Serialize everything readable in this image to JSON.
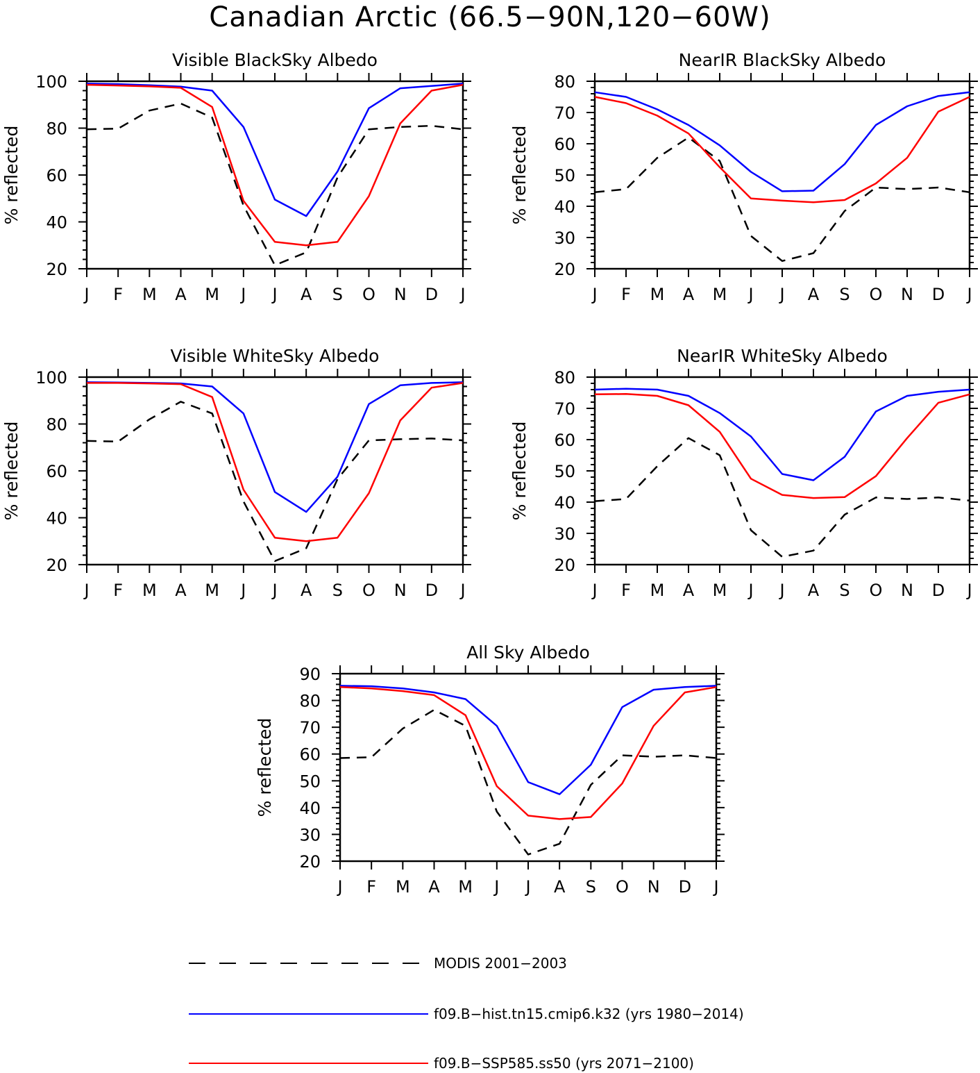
{
  "title": "Canadian Arctic (66.5−90N,120−60W)",
  "colors": {
    "modis": "#000000",
    "hist": "#0000ff",
    "ssp": "#ff0000"
  },
  "legend": [
    {
      "key": "modis",
      "label": "MODIS 2001−2003",
      "style": "dashed"
    },
    {
      "key": "hist",
      "label": "f09.B−hist.tn15.cmip6.k32 (yrs 1980−2014)",
      "style": "solid"
    },
    {
      "key": "ssp",
      "label": "f09.B−SSP585.ss50 (yrs 2071−2100)",
      "style": "solid"
    }
  ],
  "chart_data": [
    {
      "type": "line",
      "title": "Visible BlackSky Albedo",
      "xlabel": "",
      "ylabel": "% reflected",
      "categories": [
        "J",
        "F",
        "M",
        "A",
        "M",
        "J",
        "J",
        "A",
        "S",
        "O",
        "N",
        "D",
        "J"
      ],
      "ylim": [
        20,
        100
      ],
      "yticks": [
        20,
        40,
        60,
        80,
        100
      ],
      "series": [
        {
          "name": "MODIS 2001−2003",
          "key": "modis",
          "values": [
            79.5,
            79.8,
            87.5,
            90.5,
            84.5,
            47,
            21.5,
            27,
            59,
            79.5,
            80.5,
            81,
            79.5
          ]
        },
        {
          "name": "f09.B−hist.tn15.cmip6.k32 (yrs 1980−2014)",
          "key": "hist",
          "values": [
            99,
            98.8,
            98.3,
            97.7,
            96,
            80.5,
            49.5,
            42.5,
            61.5,
            88.5,
            97,
            98,
            99
          ]
        },
        {
          "name": "f09.B−SSP585.ss50 (yrs 2071−2100)",
          "key": "ssp",
          "values": [
            98.5,
            98.2,
            97.8,
            97.2,
            89,
            49,
            31.5,
            30,
            31.5,
            51,
            82,
            96,
            98.5
          ]
        }
      ]
    },
    {
      "type": "line",
      "title": "NearIR BlackSky Albedo",
      "xlabel": "",
      "ylabel": "% reflected",
      "categories": [
        "J",
        "F",
        "M",
        "A",
        "M",
        "J",
        "J",
        "A",
        "S",
        "O",
        "N",
        "D",
        "J"
      ],
      "ylim": [
        20,
        80
      ],
      "yticks": [
        20,
        30,
        40,
        50,
        60,
        70,
        80
      ],
      "series": [
        {
          "name": "MODIS 2001−2003",
          "key": "modis",
          "values": [
            44.5,
            45.5,
            55.5,
            62,
            54.5,
            30.5,
            22.5,
            25,
            38.5,
            46,
            45.5,
            46,
            44.5
          ]
        },
        {
          "name": "f09.B−hist.tn15.cmip6.k32 (yrs 1980−2014)",
          "key": "hist",
          "values": [
            76.5,
            75,
            71,
            66,
            59.5,
            51,
            44.8,
            45,
            53.5,
            66,
            72,
            75.3,
            76.5
          ]
        },
        {
          "name": "f09.B−SSP585.ss50 (yrs 2071−2100)",
          "key": "ssp",
          "values": [
            75,
            73,
            69,
            63.3,
            52.5,
            42.5,
            41.8,
            41.3,
            42,
            47.3,
            55.5,
            70.3,
            75
          ]
        }
      ]
    },
    {
      "type": "line",
      "title": "Visible WhiteSky Albedo",
      "xlabel": "",
      "ylabel": "% reflected",
      "categories": [
        "J",
        "F",
        "M",
        "A",
        "M",
        "J",
        "J",
        "A",
        "S",
        "O",
        "N",
        "D",
        "J"
      ],
      "ylim": [
        20,
        100
      ],
      "yticks": [
        20,
        40,
        60,
        80,
        100
      ],
      "series": [
        {
          "name": "MODIS 2001−2003",
          "key": "modis",
          "values": [
            72.8,
            72.5,
            82,
            89.5,
            84.5,
            47,
            21.5,
            27,
            56.5,
            73,
            73.5,
            73.8,
            73
          ]
        },
        {
          "name": "f09.B−hist.tn15.cmip6.k32 (yrs 1980−2014)",
          "key": "hist",
          "values": [
            97.8,
            97.7,
            97.5,
            97.3,
            96,
            84.5,
            51,
            42.5,
            57.5,
            88.5,
            96.5,
            97.5,
            97.8
          ]
        },
        {
          "name": "f09.B−SSP585.ss50 (yrs 2071−2100)",
          "key": "ssp",
          "values": [
            97.5,
            97.5,
            97.3,
            97,
            91.5,
            52,
            31.5,
            30,
            31.5,
            50.5,
            81.5,
            95.5,
            97.5
          ]
        }
      ]
    },
    {
      "type": "line",
      "title": "NearIR WhiteSky Albedo",
      "xlabel": "",
      "ylabel": "% reflected",
      "categories": [
        "J",
        "F",
        "M",
        "A",
        "M",
        "J",
        "J",
        "A",
        "S",
        "O",
        "N",
        "D",
        "J"
      ],
      "ylim": [
        20,
        80
      ],
      "yticks": [
        20,
        30,
        40,
        50,
        60,
        70,
        80
      ],
      "series": [
        {
          "name": "MODIS 2001−2003",
          "key": "modis",
          "values": [
            40.3,
            41,
            51.5,
            60.5,
            55,
            31,
            22.5,
            24.5,
            36,
            41.5,
            41,
            41.5,
            40.5
          ]
        },
        {
          "name": "f09.B−hist.tn15.cmip6.k32 (yrs 1980−2014)",
          "key": "hist",
          "values": [
            76,
            76.3,
            76,
            74,
            68.5,
            61,
            49,
            47,
            54.5,
            69,
            74,
            75.3,
            76
          ]
        },
        {
          "name": "f09.B−SSP585.ss50 (yrs 2071−2100)",
          "key": "ssp",
          "values": [
            74.5,
            74.6,
            74,
            71,
            62.5,
            47.5,
            42.3,
            41.3,
            41.6,
            48.3,
            60.5,
            71.8,
            74.5
          ]
        }
      ]
    },
    {
      "type": "line",
      "title": "All Sky Albedo",
      "xlabel": "",
      "ylabel": "% reflected",
      "categories": [
        "J",
        "F",
        "M",
        "A",
        "M",
        "J",
        "J",
        "A",
        "S",
        "O",
        "N",
        "D",
        "J"
      ],
      "ylim": [
        20,
        90
      ],
      "yticks": [
        20,
        30,
        40,
        50,
        60,
        70,
        80,
        90
      ],
      "series": [
        {
          "name": "MODIS 2001−2003",
          "key": "modis",
          "values": [
            58.5,
            58.8,
            69.5,
            76.5,
            70.5,
            38.5,
            22.5,
            26.5,
            48.5,
            59.5,
            59,
            59.5,
            58.5
          ]
        },
        {
          "name": "f09.B−hist.tn15.cmip6.k32 (yrs 1980−2014)",
          "key": "hist",
          "values": [
            85.5,
            85.3,
            84.5,
            83,
            80.5,
            70.5,
            49.5,
            45,
            56,
            77.5,
            84,
            85,
            85.5
          ]
        },
        {
          "name": "f09.B−SSP585.ss50 (yrs 2071−2100)",
          "key": "ssp",
          "values": [
            85,
            84.5,
            83.5,
            82,
            74.5,
            48,
            37,
            35.7,
            36.5,
            49,
            70.5,
            83,
            85
          ]
        }
      ]
    }
  ]
}
